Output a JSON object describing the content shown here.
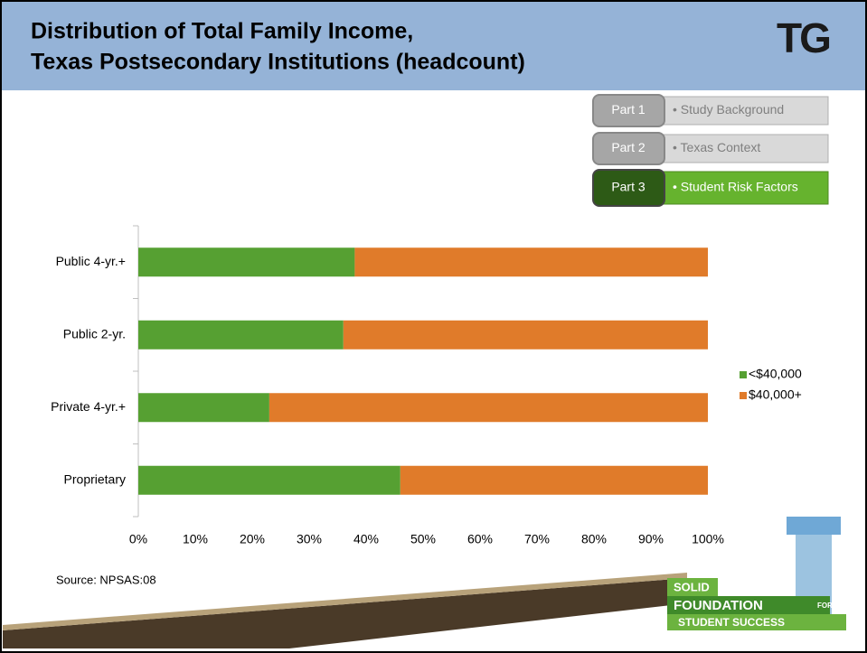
{
  "chart_data": {
    "type": "bar",
    "orientation": "horizontal",
    "stacked": true,
    "title": [
      "Distribution of Total Family Income,",
      "Texas Postsecondary Institutions (headcount)"
    ],
    "categories": [
      "Public 4-yr.+",
      "Public 2-yr.",
      "Private 4-yr.+",
      "Proprietary"
    ],
    "series": [
      {
        "name": "<$40,000",
        "color": "#56a032",
        "values": [
          38,
          36,
          23,
          46
        ]
      },
      {
        "name": "$40,000+",
        "color": "#e07b2a",
        "values": [
          62,
          64,
          77,
          54
        ]
      }
    ],
    "xlim": [
      0,
      100
    ],
    "xticks": [
      {
        "value": 0,
        "label": "0%"
      },
      {
        "value": 10,
        "label": "10%"
      },
      {
        "value": 20,
        "label": "20%"
      },
      {
        "value": 30,
        "label": "30%"
      },
      {
        "value": 40,
        "label": "40%"
      },
      {
        "value": 50,
        "label": "50%"
      },
      {
        "value": 60,
        "label": "60%"
      },
      {
        "value": 70,
        "label": "70%"
      },
      {
        "value": 80,
        "label": "80%"
      },
      {
        "value": 90,
        "label": "90%"
      },
      {
        "value": 100,
        "label": "100%"
      }
    ],
    "legend": "right",
    "source": "Source: NPSAS:08"
  },
  "nav": [
    {
      "part": "Part 1",
      "label": "• Study Background"
    },
    {
      "part": "Part 2",
      "label": "• Texas Context"
    },
    {
      "part": "Part 3",
      "label": "• Student Risk Factors"
    }
  ],
  "logos": {
    "tg": "TG",
    "solid": "SOLID",
    "foundation": "FOUNDATION",
    "for": "FOR",
    "student": "STUDENT SUCCESS"
  }
}
